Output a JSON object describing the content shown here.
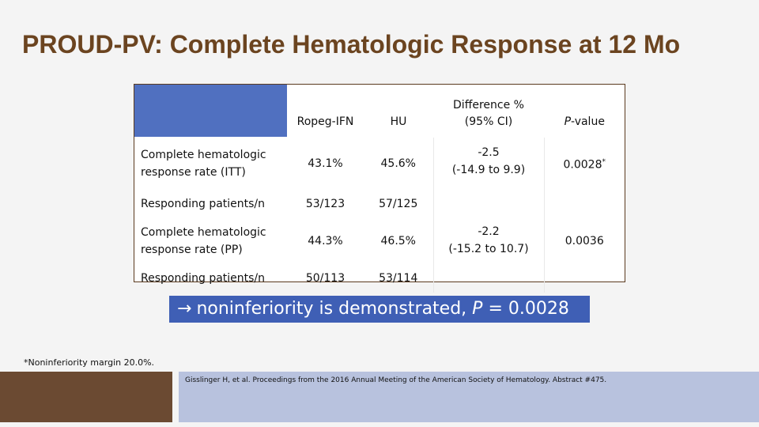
{
  "slide": {
    "title": "PROUD-PV: Complete Hematologic Response at 12 Mo"
  },
  "table": {
    "headers": {
      "ropeg": "Ropeg-IFN",
      "hu": "HU",
      "diff_line1": "Difference %",
      "diff_line2": "(95% CI)",
      "pvalue_italic": "P",
      "pvalue_rest": "-value"
    },
    "rows": [
      {
        "label_line1": "Complete hematologic",
        "label_line2": "response rate  (ITT)",
        "ropeg": "43.1%",
        "hu": "45.6%",
        "diff_line1": "-2.5",
        "diff_line2": "(-14.9 to 9.9)",
        "pvalue": "0.0028",
        "pvalue_mark": "*"
      },
      {
        "label": "Responding patients/n",
        "ropeg": "53/123",
        "hu": "57/125"
      },
      {
        "label_line1": "Complete hematologic",
        "label_line2": "response rate (PP)",
        "ropeg": "44.3%",
        "hu": "46.5%",
        "diff_line1": "-2.2",
        "diff_line2": "(-15.2 to 10.7)",
        "pvalue": "0.0036"
      },
      {
        "label": "Responding patients/n",
        "ropeg": "50/113",
        "hu": "53/114"
      }
    ]
  },
  "callout": {
    "arrow": "→",
    "text_before": "noninferiority is demonstrated, ",
    "p_italic": "P",
    "text_after": " = 0.0028"
  },
  "footnote": "*Noninferiority margin 20.0%.",
  "citation": "Gisslinger H, et al. Proceedings from the 2016 Annual Meeting of the American Society of Hematology. Abstract #475.",
  "colors": {
    "title": "#6b4420",
    "header_corner": "#5070c0",
    "callout_bg": "#3f5fb5",
    "footer_brown": "#6b4a32",
    "footer_blue": "#b8c2de"
  }
}
